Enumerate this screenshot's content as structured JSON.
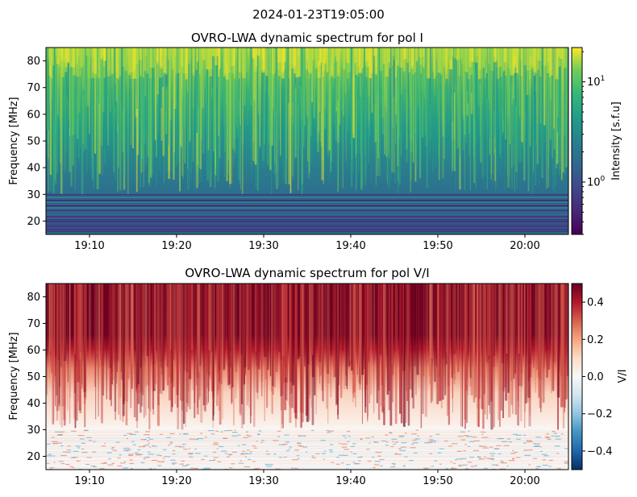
{
  "figure": {
    "suptitle": "2024-01-23T19:05:00"
  },
  "chart_data": [
    {
      "type": "heatmap",
      "title": "OVRO-LWA dynamic spectrum for pol I",
      "xlabel": "",
      "ylabel": "Frequency [MHz]",
      "x_ticks": [
        "19:10",
        "19:20",
        "19:30",
        "19:40",
        "19:50",
        "20:00"
      ],
      "x_tick_minutes": [
        5,
        15,
        25,
        35,
        45,
        55
      ],
      "xlim_minutes_after_1905": [
        0,
        60
      ],
      "xlim": [
        "19:05",
        "20:05"
      ],
      "y_ticks": [
        20,
        30,
        40,
        50,
        60,
        70,
        80
      ],
      "ylim": [
        15,
        85
      ],
      "colorbar": {
        "label": "Intensity [s.f.u]",
        "scale": "log",
        "colormap": "viridis",
        "range": [
          0.3,
          22
        ],
        "major_ticks": [
          {
            "base": "10",
            "exp": "0",
            "value": 1
          },
          {
            "base": "10",
            "exp": "1",
            "value": 10
          }
        ]
      },
      "features": {
        "rfi_band_mhz": [
          15,
          30
        ],
        "bright_above_mhz": 60
      }
    },
    {
      "type": "heatmap",
      "title": "OVRO-LWA dynamic spectrum for pol V/I",
      "xlabel": "",
      "ylabel": "Frequency [MHz]",
      "x_ticks": [
        "19:10",
        "19:20",
        "19:30",
        "19:40",
        "19:50",
        "20:00"
      ],
      "x_tick_minutes": [
        5,
        15,
        25,
        35,
        45,
        55
      ],
      "xlim_minutes_after_1905": [
        0,
        60
      ],
      "xlim": [
        "19:05",
        "20:05"
      ],
      "y_ticks": [
        20,
        30,
        40,
        50,
        60,
        70,
        80
      ],
      "ylim": [
        15,
        85
      ],
      "colorbar": {
        "label": "V/I",
        "scale": "linear",
        "colormap": "RdBu_r",
        "range": [
          -0.5,
          0.5
        ],
        "ticks": [
          -0.4,
          -0.2,
          0.0,
          0.2,
          0.4
        ],
        "tick_labels": [
          "−0.4",
          "−0.2",
          "0.0",
          "0.2",
          "0.4"
        ]
      },
      "features": {
        "saturated_above_mhz": 60,
        "rfi_band_mhz": [
          15,
          30
        ]
      }
    }
  ]
}
